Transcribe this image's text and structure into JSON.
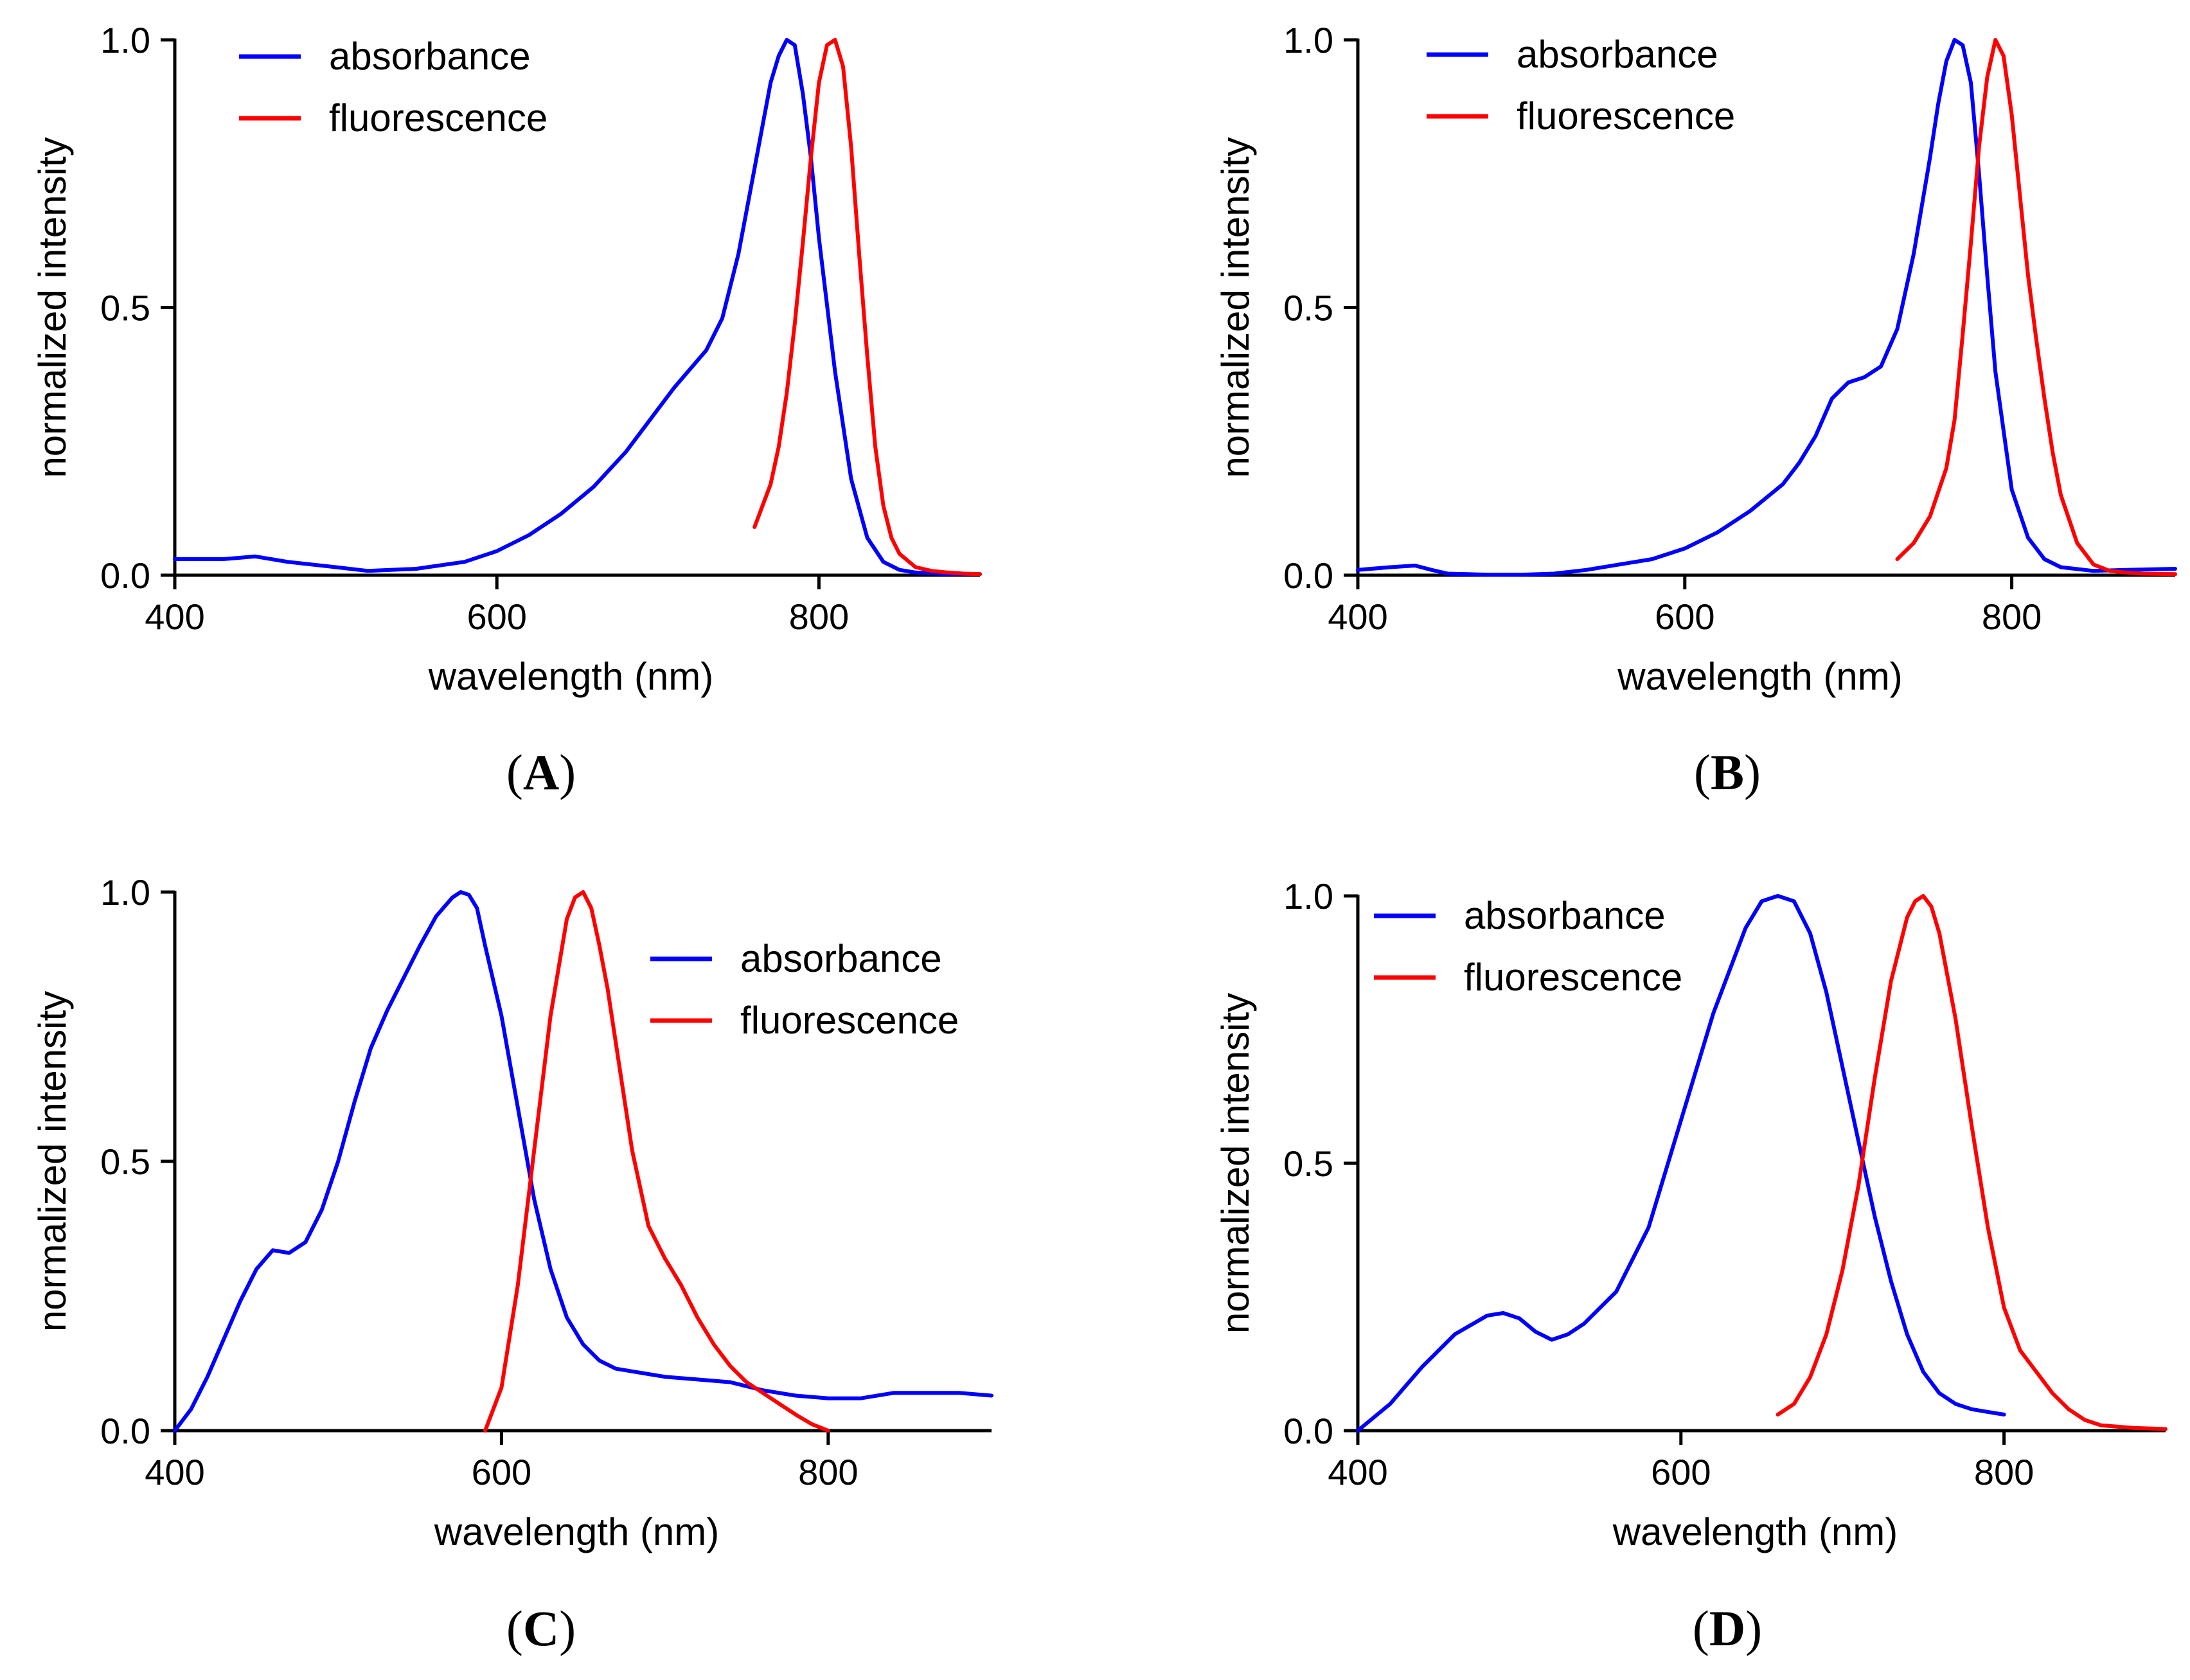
{
  "chart_data": [
    {
      "panel": "A",
      "type": "line",
      "xlabel": "wavelength (nm)",
      "ylabel": "normalized intensity",
      "xlim": [
        400,
        900
      ],
      "ylim": [
        0,
        1
      ],
      "xticks": [
        400,
        600,
        800
      ],
      "xtick_labels": [
        "400",
        "600",
        "800"
      ],
      "yticks": [
        0,
        0.5,
        1
      ],
      "ytick_labels": [
        "0.0",
        "0.5",
        "1.0"
      ],
      "legend_position": "top-left",
      "series": [
        {
          "name": "absorbance",
          "color": "#0000ff",
          "x": [
            400,
            430,
            450,
            470,
            500,
            520,
            550,
            580,
            600,
            620,
            640,
            660,
            680,
            700,
            710,
            720,
            730,
            740,
            750,
            760,
            770,
            775,
            780,
            785,
            790,
            795,
            800,
            810,
            820,
            830,
            840,
            850,
            860,
            880,
            900
          ],
          "y": [
            0.03,
            0.03,
            0.035,
            0.025,
            0.015,
            0.008,
            0.012,
            0.025,
            0.045,
            0.075,
            0.115,
            0.165,
            0.23,
            0.31,
            0.35,
            0.385,
            0.42,
            0.48,
            0.6,
            0.76,
            0.92,
            0.97,
            1.0,
            0.99,
            0.9,
            0.78,
            0.63,
            0.38,
            0.18,
            0.07,
            0.025,
            0.01,
            0.005,
            0.002,
            0.002
          ]
        },
        {
          "name": "fluorescence",
          "color": "#ff0000",
          "x": [
            760,
            765,
            770,
            775,
            780,
            785,
            790,
            795,
            800,
            805,
            810,
            815,
            820,
            825,
            830,
            835,
            840,
            845,
            850,
            860,
            870,
            880,
            890,
            900
          ],
          "y": [
            0.09,
            0.13,
            0.17,
            0.24,
            0.34,
            0.47,
            0.62,
            0.78,
            0.92,
            0.99,
            1.0,
            0.95,
            0.8,
            0.6,
            0.41,
            0.24,
            0.13,
            0.07,
            0.04,
            0.015,
            0.008,
            0.005,
            0.003,
            0.002
          ]
        }
      ]
    },
    {
      "panel": "B",
      "type": "line",
      "xlabel": "wavelength (nm)",
      "ylabel": "normalized intensity",
      "xlim": [
        400,
        900
      ],
      "ylim": [
        0,
        1
      ],
      "xticks": [
        400,
        600,
        800
      ],
      "xtick_labels": [
        "400",
        "600",
        "800"
      ],
      "yticks": [
        0,
        0.5,
        1
      ],
      "ytick_labels": [
        "0.0",
        "0.5",
        "1.0"
      ],
      "legend_position": "top-left",
      "series": [
        {
          "name": "absorbance",
          "color": "#0000ff",
          "x": [
            400,
            420,
            435,
            445,
            455,
            480,
            500,
            520,
            540,
            560,
            580,
            600,
            620,
            640,
            660,
            670,
            680,
            690,
            700,
            710,
            720,
            730,
            740,
            750,
            755,
            760,
            765,
            770,
            775,
            780,
            785,
            790,
            800,
            810,
            820,
            830,
            850,
            870,
            900
          ],
          "y": [
            0.01,
            0.015,
            0.018,
            0.01,
            0.003,
            0.001,
            0.001,
            0.003,
            0.01,
            0.02,
            0.03,
            0.05,
            0.08,
            0.12,
            0.17,
            0.21,
            0.26,
            0.33,
            0.36,
            0.37,
            0.39,
            0.46,
            0.6,
            0.78,
            0.88,
            0.96,
            1.0,
            0.99,
            0.92,
            0.75,
            0.56,
            0.38,
            0.16,
            0.07,
            0.03,
            0.015,
            0.008,
            0.01,
            0.012
          ]
        },
        {
          "name": "fluorescence",
          "color": "#ff0000",
          "x": [
            730,
            740,
            750,
            760,
            765,
            770,
            775,
            780,
            785,
            790,
            795,
            800,
            805,
            810,
            815,
            820,
            825,
            830,
            840,
            850,
            860,
            870,
            880,
            900
          ],
          "y": [
            0.03,
            0.06,
            0.11,
            0.2,
            0.29,
            0.45,
            0.62,
            0.8,
            0.93,
            1.0,
            0.97,
            0.86,
            0.71,
            0.56,
            0.44,
            0.33,
            0.23,
            0.15,
            0.06,
            0.02,
            0.008,
            0.005,
            0.003,
            0.002
          ]
        }
      ]
    },
    {
      "panel": "C",
      "type": "line",
      "xlabel": "wavelength (nm)",
      "ylabel": "normalized intensity",
      "xlim": [
        400,
        900
      ],
      "ylim": [
        0,
        1
      ],
      "xticks": [
        400,
        600,
        800
      ],
      "xtick_labels": [
        "400",
        "600",
        "800"
      ],
      "yticks": [
        0,
        0.5,
        1
      ],
      "ytick_labels": [
        "0.0",
        "0.5",
        "1.0"
      ],
      "legend_position": "top-right",
      "series": [
        {
          "name": "absorbance",
          "color": "#0000ff",
          "x": [
            400,
            410,
            420,
            430,
            440,
            450,
            460,
            470,
            480,
            490,
            500,
            510,
            520,
            530,
            540,
            550,
            560,
            570,
            575,
            580,
            585,
            590,
            600,
            610,
            620,
            630,
            640,
            650,
            660,
            670,
            680,
            700,
            720,
            740,
            760,
            780,
            800,
            820,
            840,
            860,
            880,
            900
          ],
          "y": [
            0.0,
            0.04,
            0.1,
            0.17,
            0.24,
            0.3,
            0.335,
            0.33,
            0.35,
            0.41,
            0.5,
            0.61,
            0.71,
            0.78,
            0.84,
            0.9,
            0.955,
            0.99,
            1.0,
            0.995,
            0.97,
            0.9,
            0.77,
            0.6,
            0.43,
            0.3,
            0.21,
            0.16,
            0.13,
            0.115,
            0.11,
            0.1,
            0.095,
            0.09,
            0.075,
            0.065,
            0.06,
            0.06,
            0.07,
            0.07,
            0.07,
            0.065
          ]
        },
        {
          "name": "fluorescence",
          "color": "#ff0000",
          "x": [
            590,
            600,
            610,
            620,
            630,
            640,
            645,
            650,
            655,
            660,
            665,
            670,
            680,
            690,
            700,
            710,
            720,
            730,
            740,
            750,
            760,
            770,
            780,
            790,
            800
          ],
          "y": [
            0.0,
            0.08,
            0.27,
            0.52,
            0.77,
            0.95,
            0.99,
            1.0,
            0.97,
            0.9,
            0.82,
            0.72,
            0.52,
            0.38,
            0.32,
            0.27,
            0.21,
            0.16,
            0.12,
            0.09,
            0.07,
            0.05,
            0.03,
            0.012,
            0.0
          ]
        }
      ]
    },
    {
      "panel": "D",
      "type": "line",
      "xlabel": "wavelength (nm)",
      "ylabel": "normalized intensity",
      "xlim": [
        400,
        900
      ],
      "ylim": [
        0,
        1
      ],
      "xticks": [
        400,
        600,
        800
      ],
      "xtick_labels": [
        "400",
        "600",
        "800"
      ],
      "yticks": [
        0,
        0.5,
        1
      ],
      "ytick_labels": [
        "0.0",
        "0.5",
        "1.0"
      ],
      "legend_position": "top-left",
      "series": [
        {
          "name": "absorbance",
          "color": "#0000ff",
          "x": [
            400,
            420,
            440,
            460,
            480,
            490,
            500,
            510,
            520,
            530,
            540,
            560,
            580,
            600,
            620,
            640,
            650,
            660,
            670,
            680,
            690,
            700,
            710,
            720,
            730,
            740,
            750,
            760,
            770,
            780,
            790,
            800
          ],
          "y": [
            0.0,
            0.05,
            0.12,
            0.18,
            0.215,
            0.22,
            0.21,
            0.185,
            0.17,
            0.18,
            0.2,
            0.26,
            0.38,
            0.58,
            0.78,
            0.94,
            0.99,
            1.0,
            0.99,
            0.93,
            0.82,
            0.68,
            0.54,
            0.4,
            0.28,
            0.18,
            0.11,
            0.07,
            0.05,
            0.04,
            0.035,
            0.03
          ]
        },
        {
          "name": "fluorescence",
          "color": "#ff0000",
          "x": [
            660,
            670,
            680,
            690,
            700,
            710,
            720,
            730,
            740,
            745,
            750,
            755,
            760,
            770,
            780,
            790,
            800,
            810,
            820,
            830,
            840,
            850,
            860,
            880,
            900
          ],
          "y": [
            0.03,
            0.05,
            0.1,
            0.18,
            0.3,
            0.46,
            0.66,
            0.84,
            0.96,
            0.99,
            1.0,
            0.98,
            0.93,
            0.77,
            0.57,
            0.38,
            0.23,
            0.15,
            0.11,
            0.07,
            0.04,
            0.02,
            0.01,
            0.005,
            0.003
          ]
        }
      ]
    }
  ],
  "panel_labels": [
    {
      "open": "(",
      "letter": "A",
      "close": ")"
    },
    {
      "open": "(",
      "letter": "B",
      "close": ")"
    },
    {
      "open": "(",
      "letter": "C",
      "close": ")"
    },
    {
      "open": "(",
      "letter": "D",
      "close": ")"
    }
  ]
}
